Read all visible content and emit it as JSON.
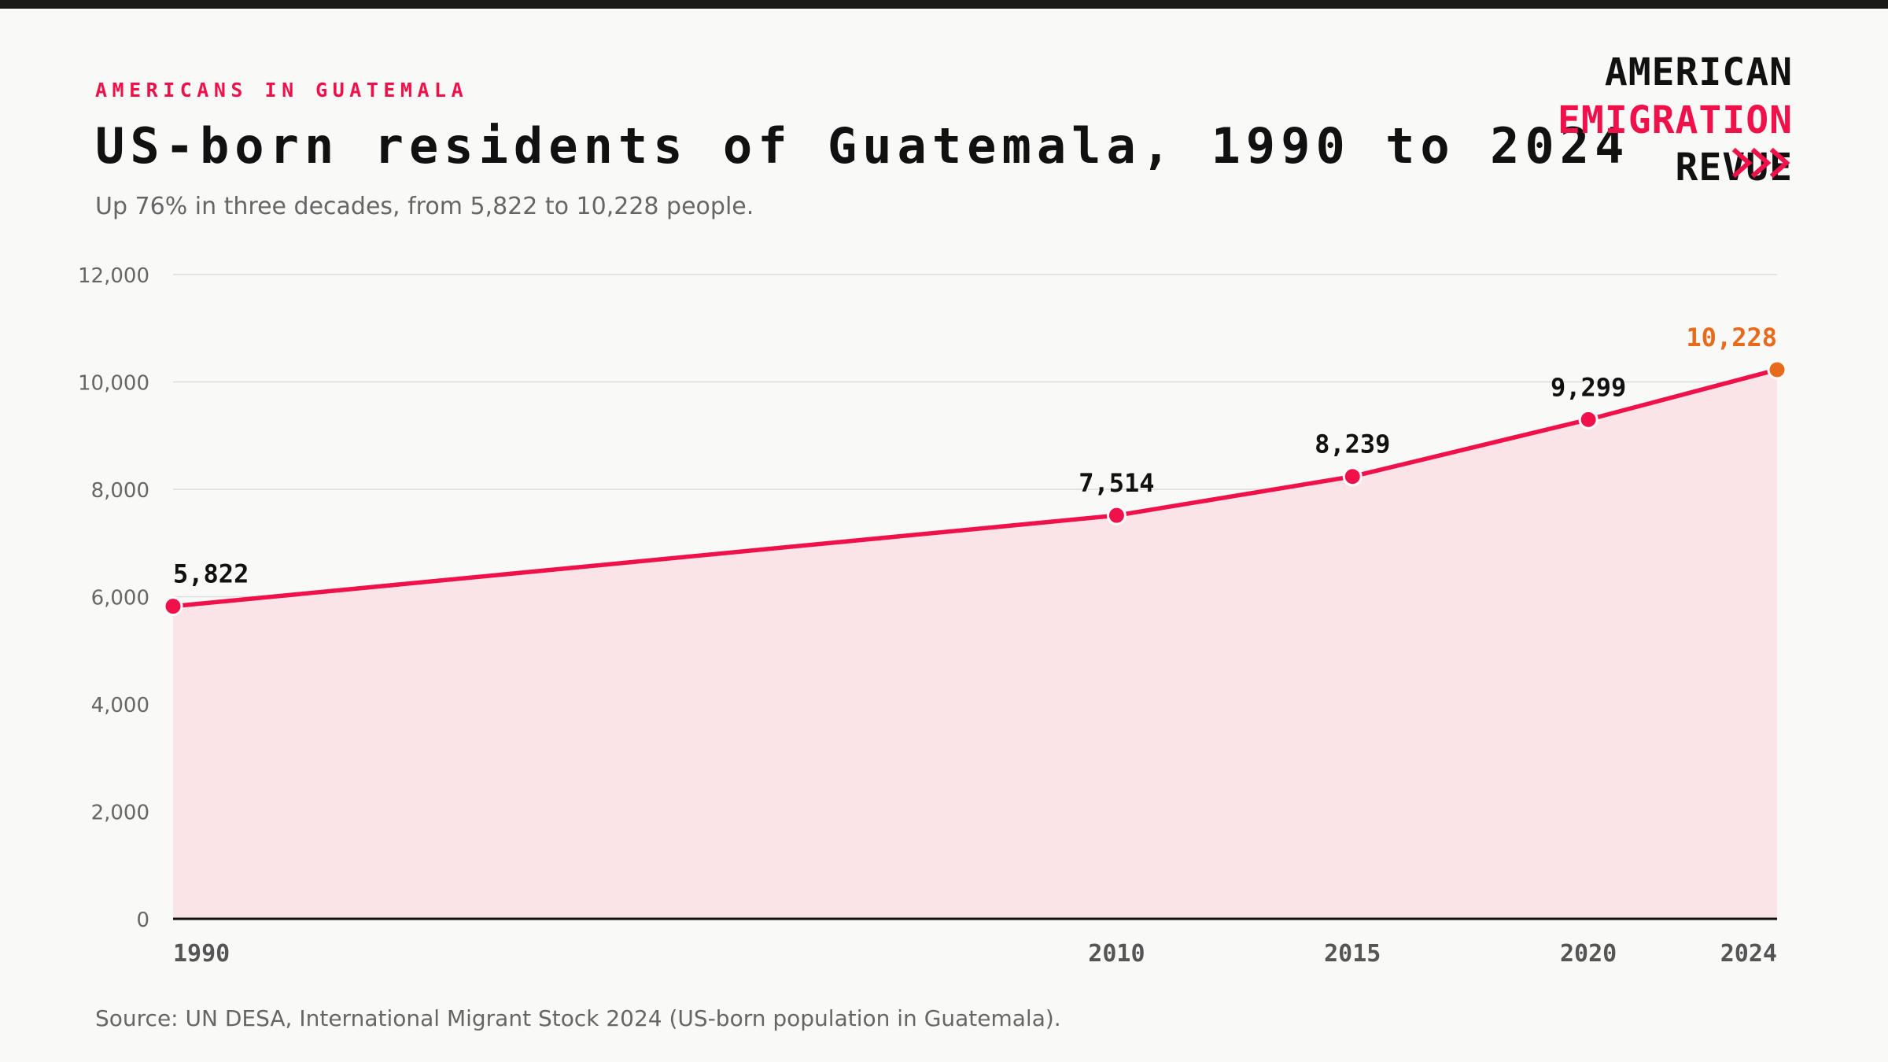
{
  "chart_data": {
    "type": "line",
    "kicker": "AMERICANS IN GUATEMALA",
    "title": "US-born residents of Guatemala, 1990 to 2024",
    "subtitle": "Up 76% in three decades, from 5,822 to 10,228 people.",
    "source": "Source: UN DESA, International Migrant Stock 2024 (US-born population in Guatemala).",
    "x": [
      1990,
      2010,
      2015,
      2020,
      2024
    ],
    "series": [
      {
        "color": "#f0104a",
        "area_color": "#fbe4e8",
        "point_colors": [
          "#f0104a",
          "#f0104a",
          "#f0104a",
          "#f0104a",
          "#e86b1c"
        ],
        "values": [
          5822,
          7514,
          8239,
          9299,
          10228
        ],
        "value_labels": [
          "5,822",
          "7,514",
          "8,239",
          "9,299",
          "10,228"
        ]
      }
    ],
    "xlim": [
      1990,
      2024
    ],
    "xticks": [
      1990,
      2010,
      2015,
      2020,
      2024
    ],
    "ylim": [
      0,
      12000
    ],
    "yticks": [
      0,
      {
        "value": 2000,
        "label": "2,000"
      },
      {
        "value": 4000,
        "label": "4,000"
      },
      {
        "value": 6000,
        "label": "6,000"
      },
      {
        "value": 8000,
        "label": "8,000"
      },
      {
        "value": 10000,
        "label": "10,000"
      },
      {
        "value": 12000,
        "label": "12,000"
      }
    ],
    "grid": true
  },
  "brand": {
    "lines": [
      {
        "text": "AMERICAN",
        "color": "#111111"
      },
      {
        "text": "EMIGRATION",
        "color": "#f0104a"
      },
      {
        "text": "REVUE",
        "color": "#111111"
      }
    ],
    "chevron_color": "#f0104a"
  }
}
